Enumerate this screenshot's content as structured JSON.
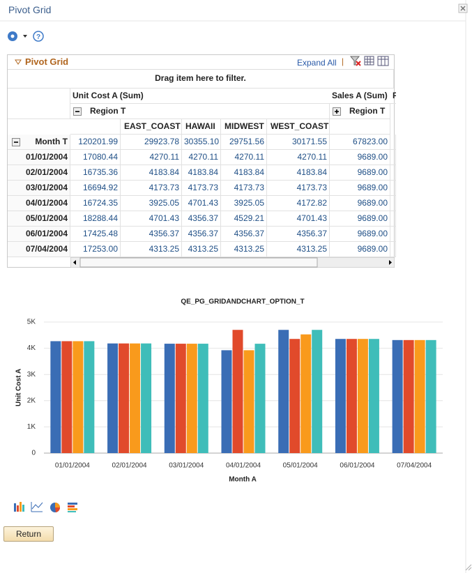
{
  "header": {
    "title": "Pivot Grid"
  },
  "panel": {
    "title": "Pivot Grid",
    "expand_all": "Expand All"
  },
  "grid": {
    "filter_hint": "Drag item here to filter.",
    "measures": [
      "Unit Cost A (Sum)",
      "Sales A (Sum)",
      "P"
    ],
    "region_labels": [
      "Region T",
      "Region T"
    ],
    "columns": [
      "EAST_COAST",
      "HAWAII",
      "MIDWEST",
      "WEST_COAST"
    ],
    "rows": [
      {
        "label": "Month T",
        "cells": [
          "120201.99",
          "29923.78",
          "30355.10",
          "29751.56",
          "30171.55",
          "67823.00"
        ]
      },
      {
        "label": "01/01/2004",
        "cells": [
          "17080.44",
          "4270.11",
          "4270.11",
          "4270.11",
          "4270.11",
          "9689.00"
        ]
      },
      {
        "label": "02/01/2004",
        "cells": [
          "16735.36",
          "4183.84",
          "4183.84",
          "4183.84",
          "4183.84",
          "9689.00"
        ]
      },
      {
        "label": "03/01/2004",
        "cells": [
          "16694.92",
          "4173.73",
          "4173.73",
          "4173.73",
          "4173.73",
          "9689.00"
        ]
      },
      {
        "label": "04/01/2004",
        "cells": [
          "16724.35",
          "3925.05",
          "4701.43",
          "3925.05",
          "4172.82",
          "9689.00"
        ]
      },
      {
        "label": "05/01/2004",
        "cells": [
          "18288.44",
          "4701.43",
          "4356.37",
          "4529.21",
          "4701.43",
          "9689.00"
        ]
      },
      {
        "label": "06/01/2004",
        "cells": [
          "17425.48",
          "4356.37",
          "4356.37",
          "4356.37",
          "4356.37",
          "9689.00"
        ]
      },
      {
        "label": "07/04/2004",
        "cells": [
          "17253.00",
          "4313.25",
          "4313.25",
          "4313.25",
          "4313.25",
          "9689.00"
        ]
      }
    ]
  },
  "chart_data": {
    "type": "bar",
    "title": "QE_PG_GRIDANDCHART_OPTION_T",
    "x_label": "Month A",
    "y_label": "Unit Cost A",
    "categories": [
      "01/01/2004",
      "02/01/2004",
      "03/01/2004",
      "04/01/2004",
      "05/01/2004",
      "06/01/2004",
      "07/04/2004"
    ],
    "series": [
      {
        "color": "#3a6db5",
        "values": [
          4270.11,
          4183.84,
          4173.73,
          3925.05,
          4701.43,
          4356.37,
          4313.25
        ]
      },
      {
        "color": "#e14a2b",
        "values": [
          4270.11,
          4183.84,
          4173.73,
          4701.43,
          4356.37,
          4356.37,
          4313.25
        ]
      },
      {
        "color": "#f99a1c",
        "values": [
          4270.11,
          4183.84,
          4173.73,
          3925.05,
          4529.21,
          4356.37,
          4313.25
        ]
      },
      {
        "color": "#3fbdb9",
        "values": [
          4270.11,
          4183.84,
          4173.73,
          4172.82,
          4701.43,
          4356.37,
          4313.25
        ]
      }
    ],
    "ylim": [
      0,
      5000
    ],
    "yticks": [
      0,
      {
        "value": 1000,
        "label": "1K"
      },
      {
        "value": 2000,
        "label": "2K"
      },
      {
        "value": 3000,
        "label": "3K"
      },
      {
        "value": 4000,
        "label": "4K"
      },
      {
        "value": 5000,
        "label": "5K"
      }
    ],
    "grid": true
  },
  "buttons": {
    "return": "Return"
  }
}
